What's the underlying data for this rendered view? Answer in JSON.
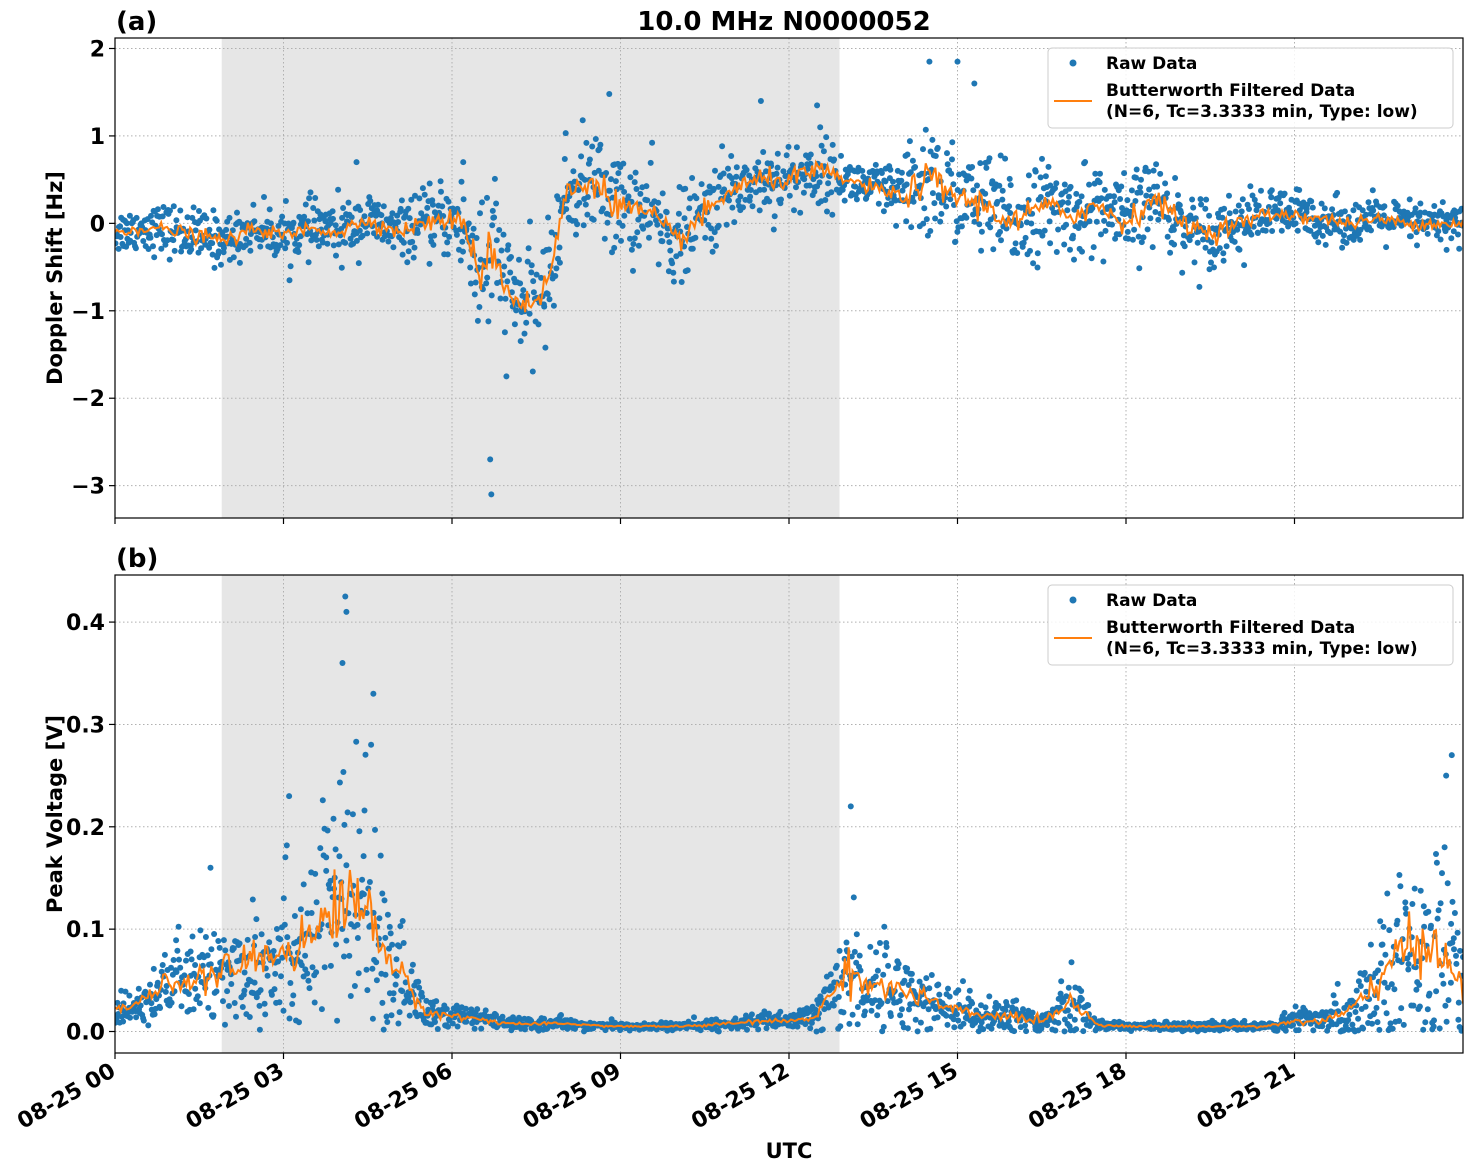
{
  "figure_title": "10.0 MHz N0000052",
  "chart_data": [
    {
      "type": "scatter",
      "panel_label": "(a)",
      "ylabel": "Doppler Shift [Hz]",
      "xlabel": "",
      "x_range_hours": [
        0,
        24
      ],
      "ylim": [
        -3.37,
        2.12
      ],
      "yticks": [
        -3,
        -2,
        -1,
        0,
        1,
        2
      ],
      "ytick_labels": [
        "−3",
        "−2",
        "−1",
        "0",
        "1",
        "2"
      ],
      "xticks_hours": [
        0,
        3,
        6,
        9,
        12,
        15,
        18,
        21
      ],
      "grid": true,
      "shaded_interval_hours": [
        1.9,
        12.9
      ],
      "legend_placement": "top-right",
      "series": [
        {
          "name": "Raw Data",
          "style": "dots",
          "color": "#1f77b4",
          "x_hours": [
            0,
            0.5,
            1,
            1.5,
            2,
            2.5,
            3,
            3.5,
            4,
            4.5,
            5,
            5.5,
            6,
            6.25,
            6.5,
            6.75,
            7,
            7.25,
            7.5,
            7.75,
            8,
            8.5,
            9,
            9.5,
            10,
            10.5,
            11,
            11.5,
            12,
            12.5,
            13,
            13.5,
            14,
            14.5,
            15,
            15.5,
            16,
            16.5,
            17,
            17.5,
            18,
            18.5,
            19,
            19.5,
            20,
            20.5,
            21,
            21.5,
            22,
            22.5,
            23,
            23.5,
            24
          ],
          "y_center": [
            -0.1,
            -0.05,
            -0.08,
            -0.15,
            -0.2,
            -0.05,
            -0.15,
            -0.05,
            -0.1,
            0.05,
            -0.1,
            0,
            0.05,
            -0.1,
            -0.5,
            -0.3,
            -0.8,
            -0.9,
            -0.9,
            -0.6,
            0.3,
            0.5,
            0.2,
            0.1,
            -0.2,
            0.1,
            0.4,
            0.5,
            0.5,
            0.6,
            0.5,
            0.4,
            0.3,
            0.5,
            0.3,
            0.2,
            0,
            0.2,
            0.1,
            0.2,
            0,
            0.3,
            0,
            -0.1,
            0,
            0.1,
            0.1,
            0.05,
            0,
            0.05,
            0,
            0,
            0
          ],
          "y_spread": [
            0.25,
            0.25,
            0.3,
            0.3,
            0.3,
            0.25,
            0.3,
            0.3,
            0.35,
            0.3,
            0.3,
            0.35,
            0.45,
            0.6,
            1.2,
            0.8,
            0.7,
            0.6,
            0.6,
            0.6,
            0.6,
            0.6,
            0.6,
            0.55,
            0.5,
            0.5,
            0.45,
            0.4,
            0.4,
            0.45,
            0.25,
            0.3,
            0.4,
            0.8,
            0.5,
            0.6,
            0.6,
            0.5,
            0.5,
            0.5,
            0.5,
            0.5,
            0.4,
            0.4,
            0.35,
            0.3,
            0.3,
            0.25,
            0.25,
            0.25,
            0.25,
            0.25,
            0.25
          ],
          "outliers": [
            [
              6.7,
              -3.1
            ],
            [
              6.68,
              -2.7
            ],
            [
              4.3,
              0.7
            ],
            [
              6.2,
              0.7
            ],
            [
              8.8,
              1.48
            ],
            [
              11.5,
              1.4
            ],
            [
              12.5,
              1.35
            ],
            [
              14.5,
              1.85
            ],
            [
              15,
              1.85
            ],
            [
              15.3,
              1.6
            ]
          ]
        },
        {
          "name": "Butterworth Filtered Data\n(N=6, Tc=3.3333 min, Type: low)",
          "style": "line",
          "color": "#ff7f0e",
          "x_hours": [
            0,
            0.5,
            1,
            1.5,
            2,
            2.5,
            3,
            3.5,
            4,
            4.5,
            5,
            5.5,
            6,
            6.25,
            6.5,
            6.75,
            7,
            7.25,
            7.5,
            7.75,
            8,
            8.5,
            9,
            9.5,
            10,
            10.5,
            11,
            11.5,
            12,
            12.5,
            13,
            13.5,
            14,
            14.5,
            15,
            15.5,
            16,
            16.5,
            17,
            17.5,
            18,
            18.5,
            19,
            19.5,
            20,
            20.5,
            21,
            21.5,
            22,
            22.5,
            23,
            23.5,
            24
          ],
          "y": [
            -0.1,
            -0.05,
            -0.08,
            -0.15,
            -0.2,
            -0.05,
            -0.15,
            -0.05,
            -0.1,
            0.05,
            -0.1,
            0,
            0.05,
            -0.1,
            -0.5,
            -0.3,
            -0.8,
            -0.9,
            -0.9,
            -0.6,
            0.3,
            0.5,
            0.2,
            0.1,
            -0.2,
            0.1,
            0.4,
            0.5,
            0.5,
            0.6,
            0.5,
            0.4,
            0.3,
            0.5,
            0.3,
            0.2,
            0,
            0.2,
            0.1,
            0.2,
            0,
            0.3,
            0,
            -0.1,
            0,
            0.1,
            0.1,
            0.05,
            0,
            0.05,
            0,
            0,
            0
          ]
        }
      ]
    },
    {
      "type": "scatter",
      "panel_label": "(b)",
      "ylabel": "Peak Voltage [V]",
      "xlabel": "UTC",
      "x_range_hours": [
        0,
        24
      ],
      "ylim": [
        -0.021,
        0.446
      ],
      "yticks": [
        0.0,
        0.1,
        0.2,
        0.3,
        0.4
      ],
      "ytick_labels": [
        "0.0",
        "0.1",
        "0.2",
        "0.3",
        "0.4"
      ],
      "xticks_hours": [
        0,
        3,
        6,
        9,
        12,
        15,
        18,
        21
      ],
      "xtick_labels": [
        "08-25 00",
        "08-25 03",
        "08-25 06",
        "08-25 09",
        "08-25 12",
        "08-25 15",
        "08-25 18",
        "08-25 21"
      ],
      "grid": true,
      "shaded_interval_hours": [
        1.9,
        12.9
      ],
      "legend_placement": "top-right",
      "series": [
        {
          "name": "Raw Data",
          "style": "dots",
          "color": "#1f77b4",
          "x_hours": [
            0,
            0.5,
            1,
            1.5,
            2,
            2.5,
            3,
            3.5,
            4,
            4.5,
            5,
            5.5,
            6,
            6.5,
            7,
            7.5,
            8,
            8.5,
            9,
            9.5,
            10,
            10.5,
            11,
            11.5,
            12,
            12.5,
            13,
            13.5,
            14,
            14.5,
            15,
            15.5,
            16,
            16.5,
            17,
            17.5,
            18,
            18.5,
            19,
            19.5,
            20,
            20.5,
            21,
            21.5,
            22,
            22.5,
            23,
            23.5,
            24
          ],
          "y_center": [
            0.02,
            0.03,
            0.05,
            0.05,
            0.06,
            0.07,
            0.08,
            0.09,
            0.13,
            0.12,
            0.06,
            0.02,
            0.015,
            0.012,
            0.008,
            0.007,
            0.008,
            0.006,
            0.005,
            0.005,
            0.005,
            0.006,
            0.008,
            0.01,
            0.01,
            0.015,
            0.06,
            0.045,
            0.04,
            0.03,
            0.02,
            0.015,
            0.015,
            0.01,
            0.03,
            0.007,
            0.005,
            0.005,
            0.005,
            0.005,
            0.005,
            0.005,
            0.01,
            0.01,
            0.02,
            0.05,
            0.08,
            0.09,
            0.04
          ],
          "y_spread": [
            0.015,
            0.02,
            0.04,
            0.04,
            0.06,
            0.07,
            0.08,
            0.09,
            0.14,
            0.12,
            0.06,
            0.02,
            0.012,
            0.01,
            0.006,
            0.005,
            0.006,
            0.004,
            0.004,
            0.004,
            0.004,
            0.005,
            0.006,
            0.008,
            0.008,
            0.015,
            0.07,
            0.05,
            0.04,
            0.03,
            0.02,
            0.015,
            0.02,
            0.01,
            0.04,
            0.005,
            0.004,
            0.004,
            0.004,
            0.004,
            0.004,
            0.004,
            0.015,
            0.012,
            0.03,
            0.05,
            0.1,
            0.1,
            0.05
          ],
          "outliers": [
            [
              4.1,
              0.425
            ],
            [
              4.12,
              0.41
            ],
            [
              4.05,
              0.36
            ],
            [
              4.6,
              0.33
            ],
            [
              13.1,
              0.22
            ],
            [
              23.8,
              0.27
            ],
            [
              23.7,
              0.25
            ],
            [
              1.7,
              0.16
            ],
            [
              3.1,
              0.23
            ]
          ]
        },
        {
          "name": "Butterworth Filtered Data\n(N=6, Tc=3.3333 min, Type: low)",
          "style": "line",
          "color": "#ff7f0e",
          "x_hours": [
            0,
            0.5,
            1,
            1.5,
            2,
            2.5,
            3,
            3.5,
            4,
            4.5,
            5,
            5.5,
            6,
            6.5,
            7,
            7.5,
            8,
            8.5,
            9,
            9.5,
            10,
            10.5,
            11,
            11.5,
            12,
            12.5,
            13,
            13.5,
            14,
            14.5,
            15,
            15.5,
            16,
            16.5,
            17,
            17.5,
            18,
            18.5,
            19,
            19.5,
            20,
            20.5,
            21,
            21.5,
            22,
            22.5,
            23,
            23.5,
            24
          ],
          "y": [
            0.02,
            0.03,
            0.05,
            0.05,
            0.06,
            0.07,
            0.08,
            0.09,
            0.13,
            0.12,
            0.06,
            0.02,
            0.015,
            0.012,
            0.008,
            0.007,
            0.008,
            0.006,
            0.005,
            0.005,
            0.005,
            0.006,
            0.008,
            0.01,
            0.01,
            0.015,
            0.06,
            0.045,
            0.04,
            0.03,
            0.02,
            0.015,
            0.015,
            0.01,
            0.03,
            0.007,
            0.005,
            0.005,
            0.005,
            0.005,
            0.005,
            0.005,
            0.01,
            0.01,
            0.02,
            0.05,
            0.08,
            0.09,
            0.04
          ]
        }
      ]
    }
  ]
}
